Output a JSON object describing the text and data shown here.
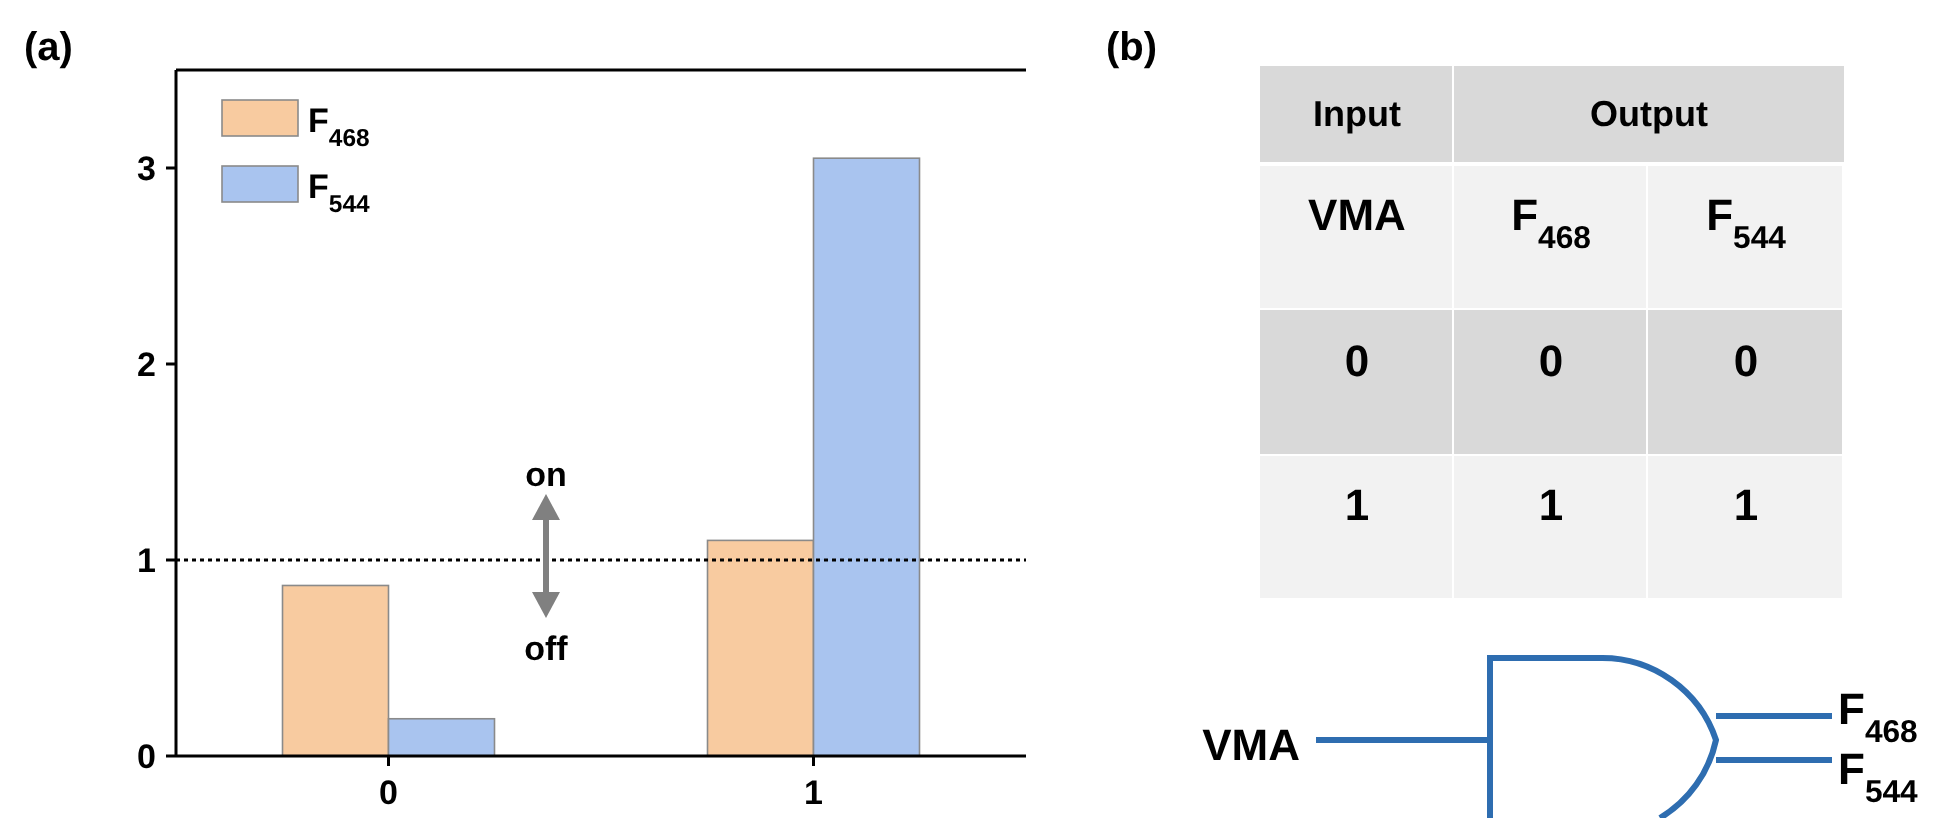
{
  "chart_data": [
    {
      "type": "bar",
      "title": "(a)",
      "categories": [
        "0",
        "1"
      ],
      "series": [
        {
          "name": "F$_{468}$",
          "color": "#f8cba0",
          "values": [
            0.87,
            1.1
          ]
        },
        {
          "name": "F$_{544}$",
          "color": "#a9c4ef",
          "values": [
            0.19,
            3.05
          ]
        }
      ],
      "ylim": [
        0,
        3.5
      ],
      "yticks": [
        0,
        1,
        2,
        3
      ],
      "legend": "top left",
      "ref_lines": [
        {
          "axis": "y",
          "value": 1,
          "line_style": "dotted",
          "color": "#000000"
        }
      ],
      "annotations": [
        "on",
        "off"
      ]
    },
    {
      "type": "other",
      "title": "(b)",
      "annotations": [
        "Input",
        "Output",
        "VMA",
        "F$_{468}$",
        "F$_{544}$",
        "0",
        "0",
        "0",
        "1",
        "1",
        "1",
        "VMA",
        "F$_{468}$",
        "F$_{544}$"
      ]
    }
  ]
}
